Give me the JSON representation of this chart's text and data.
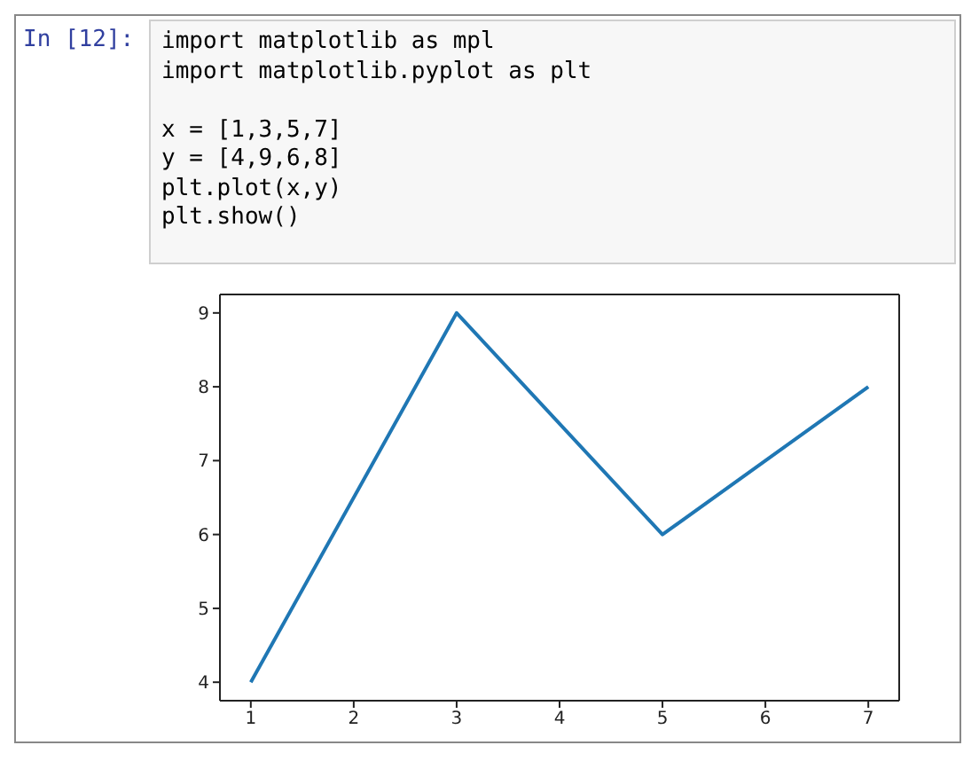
{
  "chart_data": {
    "type": "line",
    "annotations": [
      "In  [12]:",
      "import matplotlib as mpl",
      "import matplotlib.pyplot as plt",
      "x = [1,3,5,7]",
      "y = [4,9,6,8]",
      "plt.plot(x,y)",
      "plt.show()"
    ],
    "x": [
      1,
      3,
      5,
      7
    ],
    "series": [
      {
        "color": "#1f77b4",
        "values": [
          4,
          9,
          6,
          8
        ]
      }
    ],
    "xlim": [
      0.7,
      7.3
    ],
    "xticks": [
      1,
      2,
      3,
      4,
      5,
      6,
      7
    ],
    "ylim": [
      3.75,
      9.25
    ],
    "yticks": [
      4,
      5,
      6,
      7,
      8,
      9
    ],
    "grid": false,
    "legend": false,
    "marker": "none",
    "line_style": "solid"
  }
}
